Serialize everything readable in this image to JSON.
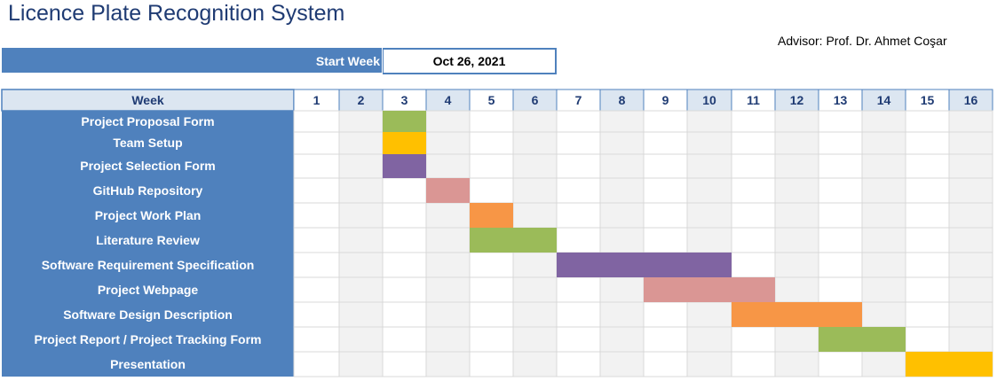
{
  "title": "Licence Plate Recognition System",
  "advisor": "Advisor: Prof. Dr. Ahmet Coşar",
  "start_week_label": "Start Week",
  "start_week_value": "Oct 26, 2021",
  "colors": {
    "header_blue": "#4f81bd",
    "header_light": "#dce6f1",
    "green": "#9bbb59",
    "amber": "#ffc000",
    "purple": "#8064a2",
    "pink": "#da9694",
    "orange": "#f79646"
  },
  "chart_data": {
    "type": "gantt",
    "week_header": "Week",
    "weeks": [
      "1",
      "2",
      "3",
      "4",
      "5",
      "6",
      "7",
      "8",
      "9",
      "10",
      "11",
      "12",
      "13",
      "14",
      "15",
      "16"
    ],
    "tasks": [
      {
        "name": "Project Proposal Form",
        "start_week": 3,
        "end_week": 3,
        "color": "#9bbb59"
      },
      {
        "name": "Team Setup",
        "start_week": 3,
        "end_week": 3,
        "color": "#ffc000"
      },
      {
        "name": "Project Selection Form",
        "start_week": 3,
        "end_week": 3,
        "color": "#8064a2"
      },
      {
        "name": "GitHub Repository",
        "start_week": 4,
        "end_week": 4,
        "color": "#da9694"
      },
      {
        "name": "Project Work Plan",
        "start_week": 5,
        "end_week": 5,
        "color": "#f79646"
      },
      {
        "name": "Literature Review",
        "start_week": 5,
        "end_week": 6,
        "color": "#9bbb59"
      },
      {
        "name": "Software Requirement Specification",
        "start_week": 7,
        "end_week": 10,
        "color": "#8064a2"
      },
      {
        "name": "Project Webpage",
        "start_week": 9,
        "end_week": 11,
        "color": "#da9694"
      },
      {
        "name": "Software Design Description",
        "start_week": 11,
        "end_week": 13,
        "color": "#f79646"
      },
      {
        "name": "Project Report / Project Tracking Form",
        "start_week": 13,
        "end_week": 14,
        "color": "#9bbb59"
      },
      {
        "name": "Presentation",
        "start_week": 15,
        "end_week": 16,
        "color": "#ffc000"
      }
    ]
  }
}
